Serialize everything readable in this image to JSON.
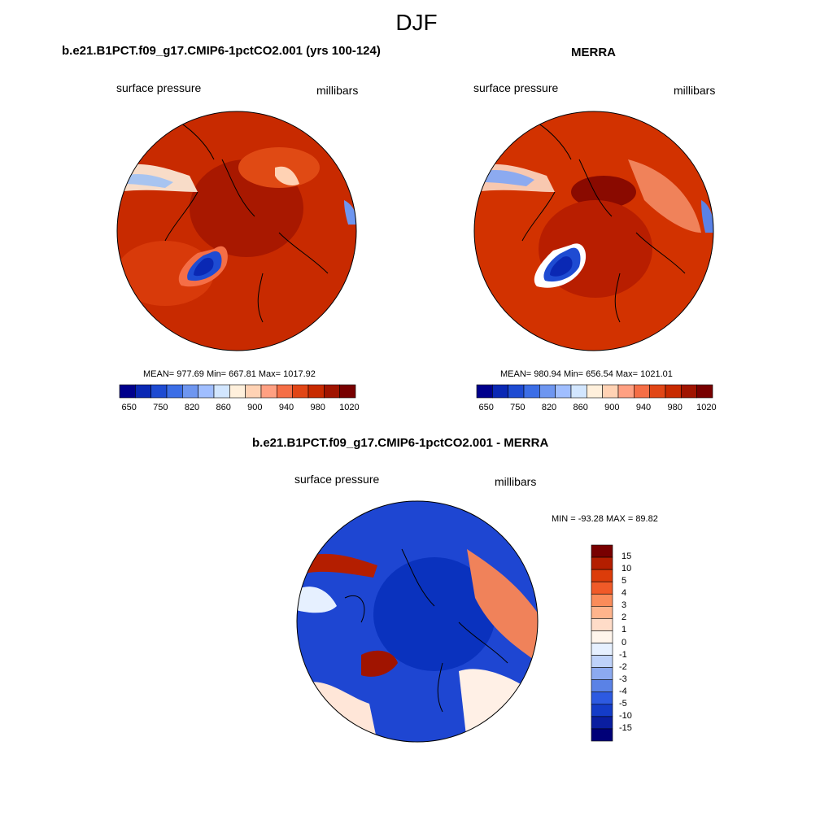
{
  "figure_title": "DJF",
  "panels": [
    {
      "title": "b.e21.B1PCT.f09_g17.CMIP6-1pctCO2.001 (yrs 100-124)",
      "left_label": "surface pressure",
      "right_label": "millibars",
      "stats": "MEAN= 977.69  Min= 667.81  Max= 1017.92"
    },
    {
      "title": "MERRA",
      "left_label": "surface pressure",
      "right_label": "millibars",
      "stats": "MEAN= 980.94  Min= 656.54  Max= 1021.01"
    },
    {
      "title": "b.e21.B1PCT.f09_g17.CMIP6-1pctCO2.001 - MERRA",
      "left_label": "surface pressure",
      "right_label": "millibars",
      "stats": "MIN = -93.28 MAX =  89.82"
    }
  ],
  "horizontal_colorbar": {
    "tick_labels": [
      "650",
      "750",
      "820",
      "860",
      "900",
      "940",
      "980",
      "1020"
    ],
    "colors": [
      "#00008c",
      "#0a28b4",
      "#1e4bd2",
      "#3c6ee6",
      "#6e96f0",
      "#a0beff",
      "#d2e6ff",
      "#fff0dc",
      "#ffd2b4",
      "#ffa082",
      "#f56e46",
      "#e14616",
      "#c82a00",
      "#a01400",
      "#780000"
    ]
  },
  "vertical_colorbar": {
    "tick_labels": [
      "15",
      "10",
      "5",
      "4",
      "3",
      "2",
      "1",
      "0",
      "-1",
      "-2",
      "-3",
      "-4",
      "-5",
      "-10",
      "-15"
    ],
    "colors": [
      "#780000",
      "#b41e00",
      "#dc3c0a",
      "#f05a28",
      "#fa8c5a",
      "#ffb48c",
      "#ffdcc8",
      "#fff5ec",
      "#e6f0ff",
      "#bed2fa",
      "#8caaf0",
      "#5a82e6",
      "#2d5ae1",
      "#143cc8",
      "#0a1ea0",
      "#000078"
    ]
  },
  "map_colors": {
    "panel1_background": "#c82a00",
    "panel2_background": "#d23200",
    "diff_background": "#1e46d2",
    "coastline": "#000000"
  }
}
